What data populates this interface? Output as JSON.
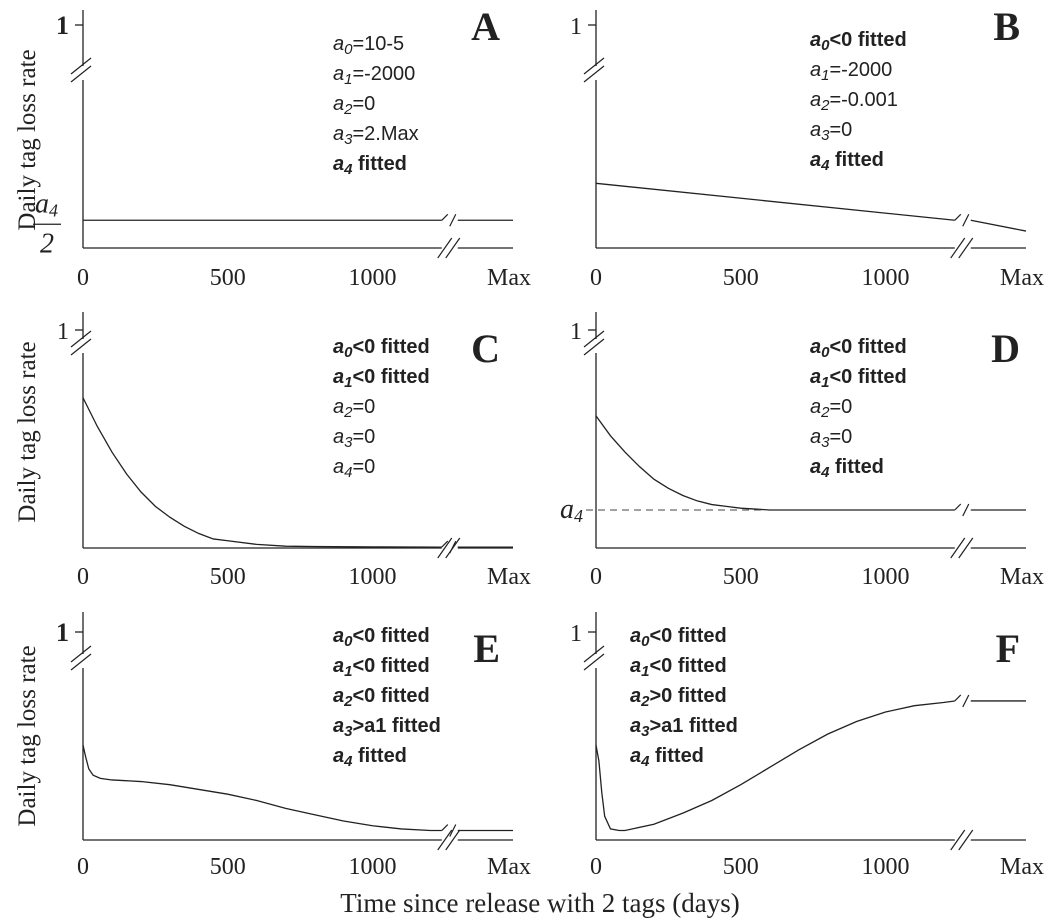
{
  "x_title": "Time since release with 2 tags (days)",
  "y_title": "Daily tag loss rate",
  "chart_data": [
    {
      "label": "A",
      "type": "line",
      "x_ticks": [
        "0",
        "500",
        "1000",
        "Max"
      ],
      "y_tick_top": "1",
      "y_tick_top_bold": true,
      "y_mark": "a4/2",
      "params": [
        {
          "name": "a",
          "sub": "0",
          "text": "=10-5",
          "bold": false
        },
        {
          "name": "a",
          "sub": "1",
          "text": "=-2000",
          "bold": false
        },
        {
          "name": "a",
          "sub": "2",
          "text": "=0",
          "bold": false
        },
        {
          "name": "a",
          "sub": "3",
          "text": "=2.Max",
          "bold": false
        },
        {
          "name": "a",
          "sub": "4",
          "text": " fitted",
          "bold": true
        }
      ],
      "series": [
        {
          "x": [
            0,
            1250,
            "Max"
          ],
          "y": [
            0.18,
            0.18,
            0.18
          ]
        }
      ],
      "y_range": [
        0,
        1
      ]
    },
    {
      "label": "B",
      "type": "line",
      "x_ticks": [
        "0",
        "500",
        "1000",
        "Max"
      ],
      "y_tick_top": "1",
      "y_tick_top_bold": false,
      "params": [
        {
          "name": "a",
          "sub": "0",
          "text": "<0 fitted",
          "bold": true
        },
        {
          "name": "a",
          "sub": "1",
          "text": "=-2000",
          "bold": false
        },
        {
          "name": "a",
          "sub": "2",
          "text": "=-0.001",
          "bold": false
        },
        {
          "name": "a",
          "sub": "3",
          "text": "=0",
          "bold": false
        },
        {
          "name": "a",
          "sub": "4",
          "text": " fitted",
          "bold": true
        }
      ],
      "series": [
        {
          "x": [
            0,
            1250,
            "Max"
          ],
          "y": [
            0.42,
            0.18,
            0.11
          ]
        }
      ],
      "y_range": [
        0,
        1
      ]
    },
    {
      "label": "C",
      "type": "line",
      "x_ticks": [
        "0",
        "500",
        "1000",
        "Max"
      ],
      "y_tick_top": "1",
      "y_tick_top_bold": false,
      "params": [
        {
          "name": "a",
          "sub": "0",
          "text": "<0 fitted",
          "bold": true
        },
        {
          "name": "a",
          "sub": "1",
          "text": "<0 fitted",
          "bold": true
        },
        {
          "name": "a",
          "sub": "2",
          "text": "=0",
          "bold": false
        },
        {
          "name": "a",
          "sub": "3",
          "text": "=0",
          "bold": false
        },
        {
          "name": "a",
          "sub": "4",
          "text": "=0",
          "bold": false
        }
      ],
      "series": [
        {
          "x": [
            0,
            50,
            100,
            150,
            200,
            250,
            300,
            350,
            400,
            450,
            500,
            600,
            700,
            800,
            1000,
            1250,
            "Max"
          ],
          "y": [
            0.83,
            0.67,
            0.53,
            0.41,
            0.31,
            0.23,
            0.17,
            0.12,
            0.08,
            0.05,
            0.04,
            0.02,
            0.01,
            0.008,
            0.006,
            0.005,
            0.005
          ]
        }
      ],
      "y_range": [
        0,
        1
      ]
    },
    {
      "label": "D",
      "type": "line",
      "x_ticks": [
        "0",
        "500",
        "1000",
        "Max"
      ],
      "y_tick_top": "1",
      "y_tick_top_bold": false,
      "y_mark": "a4",
      "params": [
        {
          "name": "a",
          "sub": "0",
          "text": "<0 fitted",
          "bold": true
        },
        {
          "name": "a",
          "sub": "1",
          "text": "<0 fitted",
          "bold": true
        },
        {
          "name": "a",
          "sub": "2",
          "text": "=0",
          "bold": false
        },
        {
          "name": "a",
          "sub": "3",
          "text": "=0",
          "bold": false
        },
        {
          "name": "a",
          "sub": "4",
          "text": " fitted",
          "bold": true
        }
      ],
      "series": [
        {
          "x": [
            0,
            50,
            100,
            150,
            200,
            250,
            300,
            350,
            400,
            450,
            500,
            550,
            600,
            700,
            1000,
            1250,
            "Max"
          ],
          "y": [
            0.73,
            0.62,
            0.53,
            0.45,
            0.38,
            0.33,
            0.29,
            0.26,
            0.24,
            0.23,
            0.22,
            0.215,
            0.21,
            0.21,
            0.21,
            0.21,
            0.21
          ]
        }
      ],
      "y_range": [
        0,
        1
      ]
    },
    {
      "label": "E",
      "type": "line",
      "x_ticks": [
        "0",
        "500",
        "1000",
        "Max"
      ],
      "y_tick_top": "1",
      "y_tick_top_bold": true,
      "params": [
        {
          "name": "a",
          "sub": "0",
          "text": "<0 fitted",
          "bold": true
        },
        {
          "name": "a",
          "sub": "1",
          "text": "<0 fitted",
          "bold": true
        },
        {
          "name": "a",
          "sub": "2",
          "text": "<0 fitted",
          "bold": true
        },
        {
          "name": "a",
          "sub": "3",
          "text": ">a1 fitted",
          "bold": true
        },
        {
          "name": "a",
          "sub": "4",
          "text": " fitted",
          "bold": true
        }
      ],
      "series": [
        {
          "x": [
            0,
            10,
            20,
            35,
            60,
            100,
            200,
            300,
            400,
            500,
            600,
            700,
            800,
            900,
            1000,
            1100,
            1200,
            1250,
            "Max"
          ],
          "y": [
            0.6,
            0.52,
            0.45,
            0.41,
            0.39,
            0.38,
            0.37,
            0.35,
            0.32,
            0.29,
            0.25,
            0.2,
            0.16,
            0.12,
            0.09,
            0.07,
            0.06,
            0.06,
            0.06
          ]
        }
      ],
      "y_range": [
        0,
        1
      ]
    },
    {
      "label": "F",
      "type": "line",
      "x_ticks": [
        "0",
        "500",
        "1000",
        "Max"
      ],
      "y_tick_top": "1",
      "y_tick_top_bold": false,
      "params": [
        {
          "name": "a",
          "sub": "0",
          "text": "<0 fitted",
          "bold": true
        },
        {
          "name": "a",
          "sub": "1",
          "text": "<0 fitted",
          "bold": true
        },
        {
          "name": "a",
          "sub": "2",
          "text": ">0 fitted",
          "bold": true
        },
        {
          "name": "a",
          "sub": "3",
          "text": ">a1 fitted",
          "bold": true
        },
        {
          "name": "a",
          "sub": "4",
          "text": " fitted",
          "bold": true
        }
      ],
      "series": [
        {
          "x": [
            0,
            10,
            20,
            30,
            50,
            80,
            100,
            200,
            300,
            400,
            500,
            600,
            700,
            800,
            900,
            1000,
            1100,
            1200,
            1250,
            "Max"
          ],
          "y": [
            0.6,
            0.5,
            0.3,
            0.15,
            0.07,
            0.06,
            0.06,
            0.1,
            0.17,
            0.25,
            0.35,
            0.46,
            0.57,
            0.67,
            0.75,
            0.81,
            0.85,
            0.87,
            0.88,
            0.88
          ]
        }
      ],
      "y_range": [
        0,
        1
      ]
    }
  ]
}
